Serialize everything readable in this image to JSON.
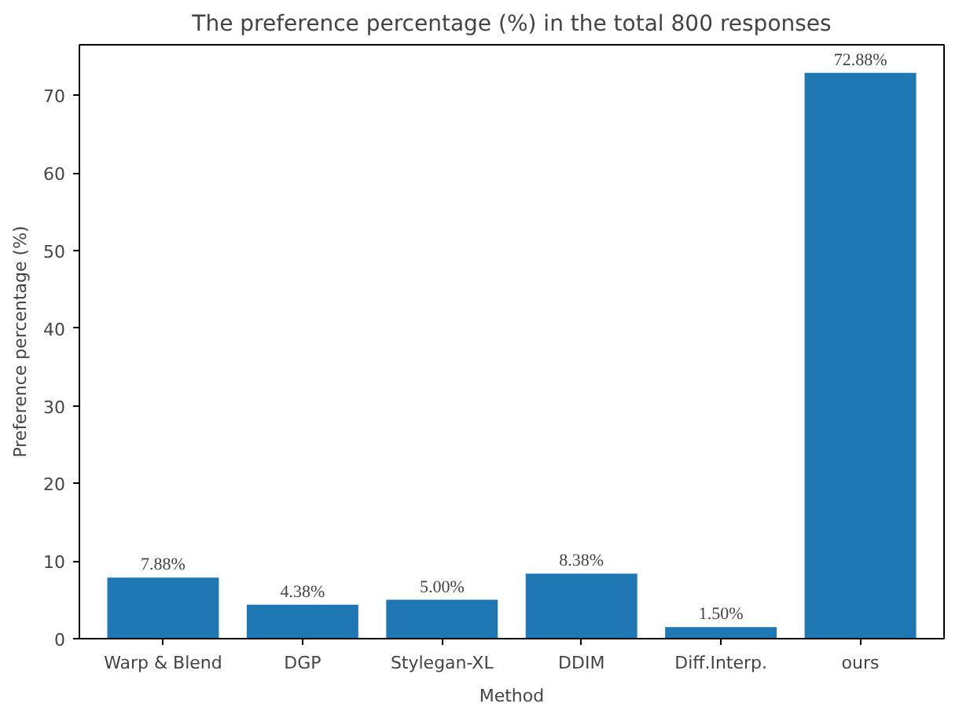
{
  "chart_data": {
    "type": "bar",
    "title": "The preference percentage (%) in the total 800 responses",
    "xlabel": "Method",
    "ylabel": "Preference percentage (%)",
    "categories": [
      "Warp & Blend",
      "DGP",
      "Stylegan-XL",
      "DDIM",
      "Diff.Interp.",
      "ours"
    ],
    "values": [
      7.88,
      4.38,
      5.0,
      8.38,
      1.5,
      72.88
    ],
    "value_labels": [
      "7.88%",
      "4.38%",
      "5.00%",
      "8.38%",
      "1.50%",
      "72.88%"
    ],
    "color": "#1f77b4",
    "ylim": [
      0,
      76.5
    ],
    "yticks": [
      0,
      10,
      20,
      30,
      40,
      50,
      60,
      70
    ],
    "grid": false
  }
}
